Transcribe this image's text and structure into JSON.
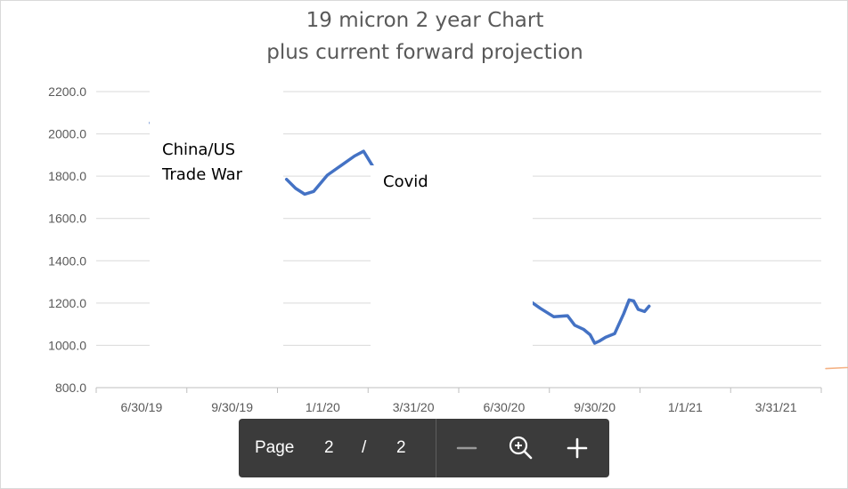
{
  "chart_data": {
    "type": "line",
    "title": [
      "19 micron 2 year Chart",
      "plus current forward projection"
    ],
    "ylim": [
      800,
      2200
    ],
    "yticks": [
      "2200.0",
      "2000.0",
      "1800.0",
      "1600.0",
      "1400.0",
      "1200.0",
      "1000.0",
      "800.0"
    ],
    "ytick_values": [
      2200,
      2000,
      1800,
      1600,
      1400,
      1200,
      1000,
      800
    ],
    "xticks": [
      "6/30/19",
      "9/30/19",
      "1/1/20",
      "3/31/20",
      "6/30/20",
      "9/30/20",
      "1/1/21",
      "3/31/21"
    ],
    "grid": true,
    "legend": "none",
    "series": [
      {
        "color": "#4472C4",
        "segments": [
          [
            [
              0.6,
              2052
            ],
            [
              0.8,
              2040
            ]
          ],
          [
            [
              2.1,
              1785
            ],
            [
              2.2,
              1742
            ],
            [
              2.3,
              1715
            ],
            [
              2.4,
              1728
            ],
            [
              2.55,
              1805
            ],
            [
              2.7,
              1850
            ],
            [
              2.85,
              1895
            ],
            [
              2.95,
              1918
            ],
            [
              3.05,
              1848
            ],
            [
              3.12,
              1775
            ],
            [
              3.22,
              1810
            ],
            [
              3.3,
              1832
            ],
            [
              3.45,
              1838
            ]
          ],
          [
            [
              4.4,
              1270
            ],
            [
              4.6,
              1258
            ],
            [
              4.75,
              1220
            ],
            [
              4.9,
              1175
            ],
            [
              5.05,
              1135
            ],
            [
              5.2,
              1140
            ],
            [
              5.28,
              1095
            ],
            [
              5.38,
              1075
            ],
            [
              5.45,
              1050
            ],
            [
              5.5,
              1010
            ],
            [
              5.55,
              1020
            ],
            [
              5.62,
              1038
            ],
            [
              5.72,
              1055
            ],
            [
              5.82,
              1150
            ],
            [
              5.88,
              1215
            ],
            [
              5.93,
              1210
            ],
            [
              5.98,
              1170
            ],
            [
              6.05,
              1160
            ],
            [
              6.1,
              1185
            ]
          ]
        ]
      },
      {
        "color": "#F4B183",
        "segments": [
          [
            [
              8.05,
              890
            ],
            [
              9.0,
              910
            ]
          ]
        ]
      }
    ],
    "annotations": [
      "China/US",
      "Trade War",
      "Covid"
    ]
  },
  "toolbar": {
    "page_label": "Page",
    "current_page": "2",
    "separator": "/",
    "total_pages": "2",
    "zoom_out_icon": "minus-icon",
    "zoom_icon": "zoom-in-icon",
    "zoom_in_icon": "plus-icon"
  }
}
